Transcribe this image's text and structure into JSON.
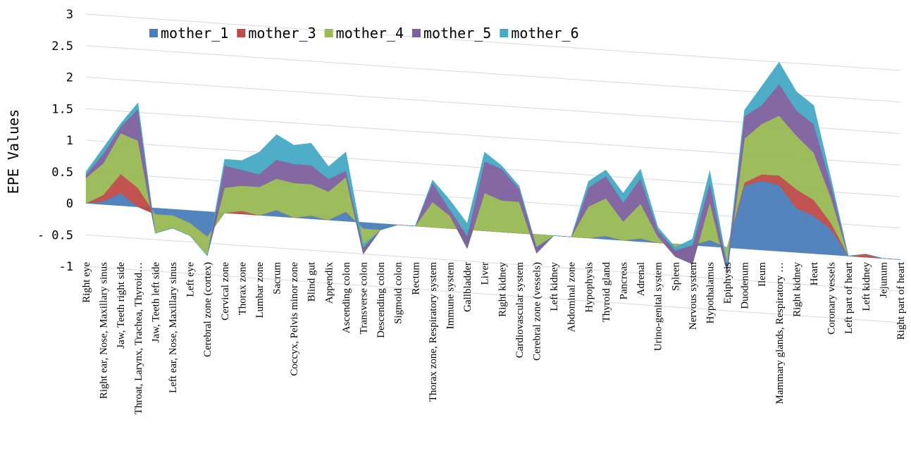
{
  "chart_data": {
    "type": "area",
    "y_label": "EPE  Values",
    "categories": [
      "Right eye",
      "Right ear, Nose, Maxillary sinus",
      "Jaw, Teeth right side",
      "Throat, Larynx, Trachea, Thyroid…",
      "Jaw, Teeth left side",
      "Left ear, Nose, Maxillary sinus",
      "Left eye",
      "Cerebral zone (cortex)",
      "Cervical zone",
      "Thorax zone",
      "Lumbar zone",
      "Sacrum",
      "Coccyx, Pelvis minor zone",
      "Blind gut",
      "Appendix",
      "Ascending colon",
      "Transverse colon",
      "Descending colon",
      "Sigmoid colon",
      "Rectum",
      "Thorax zone, Respiratory system",
      "Immune system",
      "Gallbladder",
      "Liver",
      "Right kidney",
      "Cardiovascular system",
      "Cerebral zone (vessels)",
      "Left kidney",
      "Abdominal zone",
      "Hypophysis",
      "Thyroid gland",
      "Pancreas",
      "Adrenal",
      "Urino-genital system",
      "Spleen",
      "Nervous system",
      "Hypothalamus",
      "Epiphysis",
      "Duodenum",
      "Ileum",
      "Mammary glands, Respiratory …",
      "Right kidney",
      "Heart",
      "Coronary vessels",
      "Left part of heart",
      "Left kidney",
      "Jejunum",
      "Right part of heart"
    ],
    "series": [
      {
        "name": "mother_1",
        "color": "#4a7ebb",
        "values": [
          0,
          0.05,
          0.2,
          0,
          -0.1,
          -0.1,
          -0.2,
          -0.4,
          0,
          0,
          0,
          0.1,
          0,
          0.05,
          0,
          0.15,
          -0.1,
          -0.1,
          0,
          0,
          0,
          0,
          0,
          0,
          0,
          0,
          0,
          0,
          0,
          0,
          0.05,
          0,
          0.05,
          0,
          0,
          0,
          0.1,
          0,
          1.0,
          1.1,
          1.05,
          0.7,
          0.6,
          0.4,
          0,
          0,
          0,
          0
        ]
      },
      {
        "name": "mother_3",
        "color": "#be4b48",
        "values": [
          0,
          0.1,
          0.3,
          0.3,
          0,
          0,
          0,
          0,
          0,
          0.05,
          0,
          0,
          0,
          0,
          0,
          0,
          0,
          0,
          0,
          0,
          0,
          0,
          0,
          0,
          0,
          0,
          0,
          0,
          0,
          0,
          0,
          0,
          0,
          0,
          0,
          0,
          0,
          0,
          0.05,
          0.1,
          0.15,
          0.3,
          0.25,
          0.1,
          0,
          0.05,
          0,
          0
        ]
      },
      {
        "name": "mother_4",
        "color": "#98b954",
        "values": [
          0.4,
          0.5,
          0.65,
          0.75,
          -0.3,
          -0.2,
          -0.2,
          -0.3,
          0.4,
          0.4,
          0.45,
          0.5,
          0.55,
          0.5,
          0.45,
          0.55,
          -0.4,
          0,
          0,
          0,
          0.4,
          0.2,
          -0.3,
          0.6,
          0.5,
          0.5,
          -0.3,
          0,
          0,
          0.5,
          0.6,
          0.3,
          0.55,
          0.1,
          -0.2,
          -0.3,
          0.6,
          -0.4,
          0.7,
          0.8,
          0.95,
          0.85,
          0.75,
          0.4,
          0,
          0,
          0,
          0
        ]
      },
      {
        "name": "mother_5",
        "color": "#7d60a0",
        "values": [
          0.05,
          0.15,
          0.1,
          0.5,
          0,
          0,
          0,
          0,
          0.35,
          0.25,
          0.2,
          0.3,
          0.3,
          0.3,
          0.2,
          0.1,
          0.1,
          0,
          0,
          0,
          0.3,
          0.1,
          0.2,
          0.5,
          0.5,
          0.2,
          0.1,
          0,
          0,
          0.3,
          0.35,
          0.3,
          0.4,
          0.1,
          0.1,
          0.3,
          0.3,
          0.1,
          0.35,
          0.3,
          0.5,
          0.4,
          0.45,
          0.2,
          0,
          0,
          0,
          0
        ]
      },
      {
        "name": "mother_6",
        "color": "#46aac5",
        "values": [
          0.05,
          0.1,
          0.05,
          0.1,
          0,
          0,
          0,
          0,
          0.1,
          0.15,
          0.35,
          0.4,
          0.3,
          0.35,
          0.2,
          0.3,
          0.05,
          0,
          0,
          0,
          0.05,
          0.15,
          0.2,
          0.15,
          0.05,
          0.05,
          0,
          0,
          0,
          0.1,
          0.1,
          0.15,
          0.15,
          0.05,
          0.05,
          0.1,
          0.2,
          0.05,
          0.1,
          0.3,
          0.35,
          0.3,
          0.3,
          0.1,
          0,
          0,
          0,
          0
        ]
      }
    ],
    "ylim": [
      -1,
      3
    ],
    "yticks": [
      -1,
      {
        "value": -0.5,
        "label": "- 0.5"
      },
      0,
      0.5,
      1,
      1.5,
      2,
      2.5,
      3
    ],
    "grid": true,
    "legend": "top"
  }
}
